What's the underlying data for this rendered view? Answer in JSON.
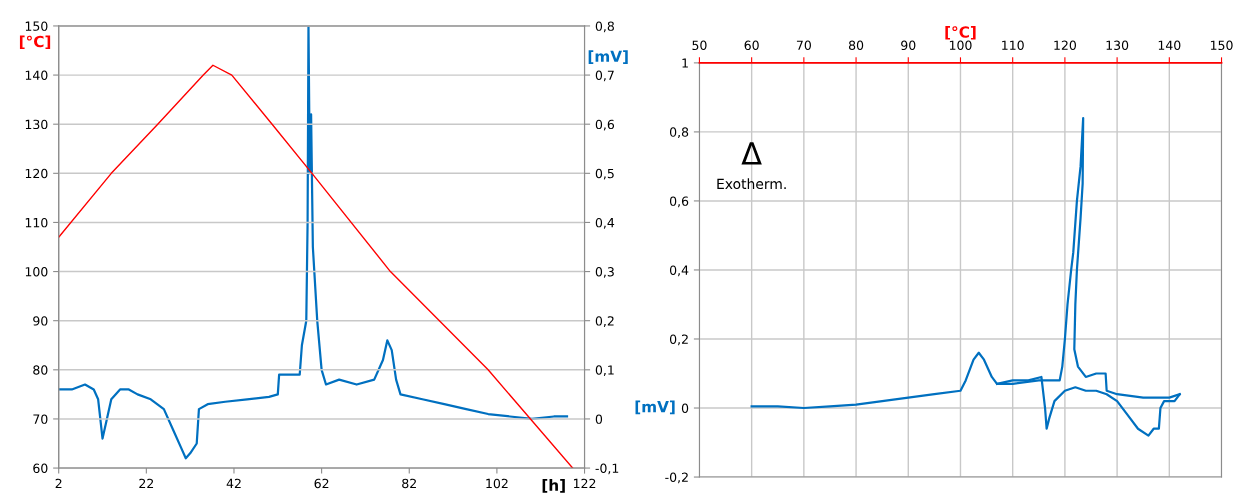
{
  "chart_data": [
    {
      "type": "line",
      "xlabel": "[h]",
      "ylabel": "[°C]",
      "y2label": "[mV]",
      "xlim": [
        2,
        122
      ],
      "xticks": [
        2,
        22,
        42,
        62,
        82,
        102,
        122
      ],
      "ylim": [
        60,
        150
      ],
      "yticks": [
        60,
        70,
        80,
        90,
        100,
        110,
        120,
        130,
        140,
        150
      ],
      "y2lim": [
        -0.1,
        0.8
      ],
      "y2ticks": [
        {
          "value": -0.1,
          "label": "-0,1"
        },
        0,
        {
          "value": 0.1,
          "label": "0,1"
        },
        {
          "value": 0.2,
          "label": "0,2"
        },
        {
          "value": 0.3,
          "label": "0,3"
        },
        {
          "value": 0.4,
          "label": "0,4"
        },
        {
          "value": 0.5,
          "label": "0,5"
        },
        {
          "value": 0.6,
          "label": "0,6"
        },
        {
          "value": 0.7,
          "label": "0,7"
        },
        {
          "value": 0.8,
          "label": "0,8"
        }
      ],
      "grid": "y",
      "marker": "none",
      "series": [
        {
          "color": "#ff0000",
          "x": [
            2,
            14,
            24.6,
            35,
            37.2,
            41.5,
            50.7,
            59.8,
            77.7,
            100,
            119.3
          ],
          "values": [
            107,
            120,
            130,
            140,
            142,
            140,
            130,
            120,
            100,
            80,
            60
          ]
        },
        {
          "color": "#0070c0",
          "axis": "y2",
          "x": [
            2,
            5,
            8,
            10,
            11,
            12,
            13,
            14,
            16,
            18,
            20,
            23,
            26,
            28,
            30,
            31,
            32,
            33.5,
            34,
            36,
            40,
            45,
            50,
            52,
            52.3,
            55,
            57,
            57.5,
            58.5,
            58.8,
            59,
            59.3,
            59.6,
            60,
            61,
            62,
            63,
            66,
            70,
            74,
            76,
            77,
            78,
            79,
            80,
            85,
            90,
            95,
            100,
            105,
            110,
            115,
            118
          ],
          "values": [
            0.06,
            0.06,
            0.07,
            0.06,
            0.04,
            -0.04,
            0.0,
            0.04,
            0.06,
            0.06,
            0.05,
            0.04,
            0.02,
            -0.02,
            -0.06,
            -0.08,
            -0.07,
            -0.05,
            0.02,
            0.03,
            0.035,
            0.04,
            0.045,
            0.05,
            0.09,
            0.09,
            0.09,
            0.15,
            0.2,
            0.4,
            0.8,
            0.5,
            0.62,
            0.35,
            0.2,
            0.1,
            0.07,
            0.08,
            0.07,
            0.08,
            0.12,
            0.16,
            0.14,
            0.08,
            0.05,
            0.04,
            0.03,
            0.02,
            0.01,
            0.005,
            0.0,
            0.005,
            0.005
          ]
        }
      ]
    },
    {
      "type": "line",
      "xlabel": "[°C]",
      "ylabel": "[mV]",
      "xlim": [
        50,
        150
      ],
      "xticks": [
        50,
        60,
        70,
        80,
        90,
        100,
        110,
        120,
        130,
        140,
        150
      ],
      "ylim": [
        -0.2,
        1
      ],
      "yticks": [
        {
          "value": -0.2,
          "label": "-0,2"
        },
        0,
        {
          "value": 0.2,
          "label": "0,2"
        },
        {
          "value": 0.4,
          "label": "0,4"
        },
        {
          "value": 0.6,
          "label": "0,6"
        },
        {
          "value": 0.8,
          "label": "0,8"
        },
        1
      ],
      "grid": true,
      "marker": "none",
      "annotations": [
        "Δ",
        "Exotherm."
      ],
      "series": [
        {
          "color": "#0070c0",
          "x": [
            142,
            140,
            135,
            130,
            128,
            127.8,
            126,
            124,
            122.5,
            121.8,
            122,
            122.3,
            123,
            123.4,
            123.5,
            123,
            122.3,
            121.6,
            121.2,
            120.5,
            120,
            119.5,
            119,
            117,
            115,
            110,
            107,
            106,
            104.5,
            103.5,
            102.5,
            101,
            100,
            95,
            90,
            85,
            80,
            75,
            70,
            65,
            60
          ],
          "values": [
            0.04,
            0.03,
            0.03,
            0.04,
            0.05,
            0.1,
            0.1,
            0.09,
            0.12,
            0.17,
            0.3,
            0.4,
            0.55,
            0.65,
            0.84,
            0.7,
            0.6,
            0.45,
            0.4,
            0.3,
            0.2,
            0.12,
            0.08,
            0.08,
            0.08,
            0.07,
            0.07,
            0.09,
            0.14,
            0.16,
            0.14,
            0.08,
            0.05,
            0.04,
            0.03,
            0.02,
            0.01,
            0.005,
            0.0,
            0.005,
            0.005
          ]
        },
        {
          "color": "#0070c0",
          "x": [
            107,
            110,
            113,
            115.5,
            116.2,
            116.5,
            117,
            118,
            120,
            122,
            124,
            126,
            128,
            130,
            132,
            134,
            136,
            137,
            138,
            138.3,
            139,
            141,
            142
          ],
          "values": [
            0.07,
            0.08,
            0.08,
            0.09,
            0.0,
            -0.06,
            -0.03,
            0.02,
            0.05,
            0.06,
            0.05,
            0.05,
            0.04,
            0.02,
            -0.02,
            -0.06,
            -0.08,
            -0.06,
            -0.06,
            0.0,
            0.02,
            0.02,
            0.04
          ]
        }
      ]
    }
  ]
}
